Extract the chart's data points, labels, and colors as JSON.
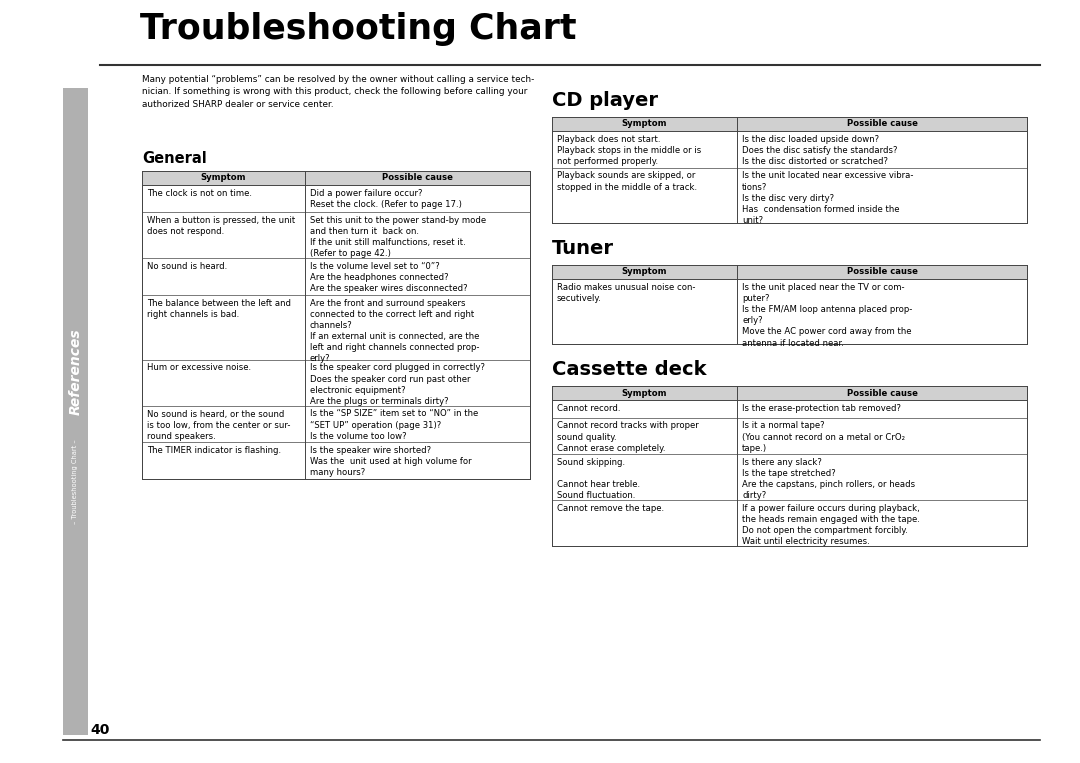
{
  "title": "Troubleshooting Chart",
  "page_number": "40",
  "sidebar_text": "References",
  "sidebar_subtext": "– Troubleshooting Chart –",
  "intro_text_line1": "Many potential “problems” can be resolved by the owner without calling a service tech-",
  "intro_text_line2": "nician. If something is wrong with this product, check the following before calling your",
  "intro_text_line3": "authorized SHARP dealer or service center.",
  "bg_color": "#ffffff",
  "sidebar_color": "#b0b0b0",
  "table_header_bg": "#d0d0d0",
  "table_border_color": "#444444",
  "general": {
    "title": "General",
    "headers": [
      "Symptom",
      "Possible cause"
    ],
    "rows": [
      [
        "The clock is not on time.",
        "Did a power failure occur?\nReset the clock. (Refer to page 17.)"
      ],
      [
        "When a button is pressed, the unit\ndoes not respond.",
        "Set this unit to the power stand-by mode\nand then turn it  back on.\nIf the unit still malfunctions, reset it.\n(Refer to page 42.)"
      ],
      [
        "No sound is heard.",
        "Is the volume level set to “0”?\nAre the headphones connected?\nAre the speaker wires disconnected?"
      ],
      [
        "The balance between the left and\nright channels is bad.",
        "Are the front and surround speakers\nconnected to the correct left and right\nchannels?\nIf an external unit is connected, are the\nleft and right channels connected prop-\nerly?"
      ],
      [
        "Hum or excessive noise.",
        "Is the speaker cord plugged in correctly?\nDoes the speaker cord run past other\nelectronic equipment?\nAre the plugs or terminals dirty?"
      ],
      [
        "No sound is heard, or the sound\nis too low, from the center or sur-\nround speakers.",
        "Is the “SP SIZE” item set to “NO” in the\n“SET UP” operation (page 31)?\nIs the volume too low?"
      ],
      [
        "The TIMER indicator is flashing.",
        "Is the speaker wire shorted?\nWas the  unit used at high volume for\nmany hours?"
      ]
    ]
  },
  "cd_player": {
    "title": "CD player",
    "headers": [
      "Symptom",
      "Possible cause"
    ],
    "rows": [
      [
        "Playback does not start.\nPlayback stops in the middle or is\nnot performed properly.",
        "Is the disc loaded upside down?\nDoes the disc satisfy the standards?\nIs the disc distorted or scratched?"
      ],
      [
        "Playback sounds are skipped, or\nstopped in the middle of a track.",
        "Is the unit located near excessive vibra-\ntions?\nIs the disc very dirty?\nHas  condensation formed inside the\nunit?"
      ]
    ]
  },
  "tuner": {
    "title": "Tuner",
    "headers": [
      "Symptom",
      "Possible cause"
    ],
    "rows": [
      [
        "Radio makes unusual noise con-\nsecutively.",
        "Is the unit placed near the TV or com-\nputer?\nIs the FM/AM loop antenna placed prop-\nerly?\nMove the AC power cord away from the\nantenna if located near."
      ]
    ]
  },
  "cassette": {
    "title": "Cassette deck",
    "headers": [
      "Symptom",
      "Possible cause"
    ],
    "rows": [
      [
        "Cannot record.",
        "Is the erase-protection tab removed?"
      ],
      [
        "Cannot record tracks with proper\nsound quality.\nCannot erase completely.",
        "Is it a normal tape?\n(You cannot record on a metal or CrO₂\ntape.)"
      ],
      [
        "Sound skipping.\n\nCannot hear treble.\nSound fluctuation.",
        "Is there any slack?\nIs the tape stretched?\nAre the capstans, pinch rollers, or heads\ndirty?"
      ],
      [
        "Cannot remove the tape.",
        "If a power failure occurs during playback,\nthe heads remain engaged with the tape.\nDo not open the compartment forcibly.\nWait until electricity resumes."
      ]
    ]
  }
}
